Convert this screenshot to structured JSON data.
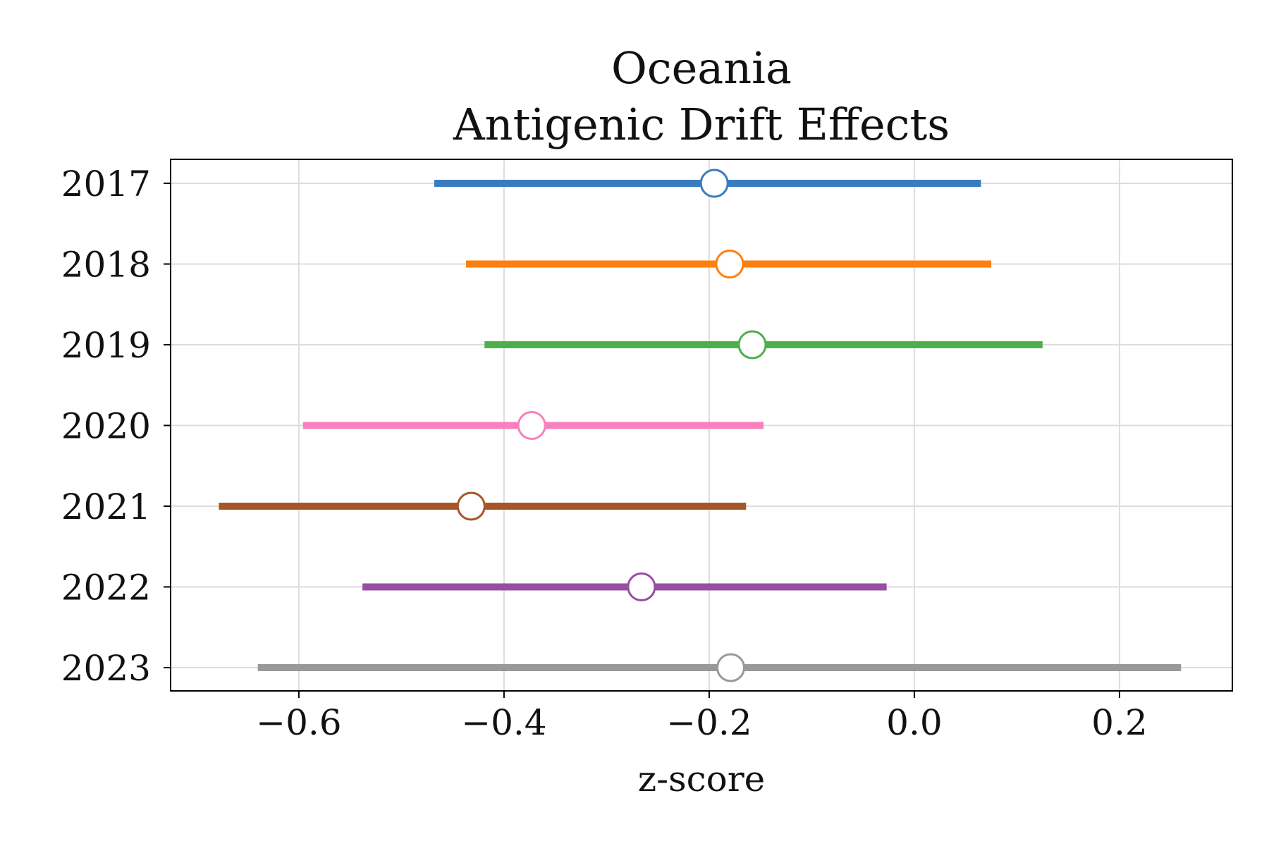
{
  "chart_data": {
    "type": "forest",
    "title_lines": [
      "Oceania",
      "Antigenic Drift Effects"
    ],
    "xlabel": "z-score",
    "ylabel": "",
    "xlim": [
      -0.725,
      0.31
    ],
    "xticks": [
      -0.6,
      -0.4,
      -0.2,
      0.0,
      0.2
    ],
    "xtick_labels": [
      "−0.6",
      "−0.4",
      "−0.2",
      "0.0",
      "0.2"
    ],
    "grid": true,
    "categories": [
      "2017",
      "2018",
      "2019",
      "2020",
      "2021",
      "2022",
      "2023"
    ],
    "points": [
      {
        "label": "2017",
        "estimate": -0.195,
        "lower": -0.468,
        "upper": 0.065,
        "color": "#3a7dbf"
      },
      {
        "label": "2018",
        "estimate": -0.18,
        "lower": -0.437,
        "upper": 0.075,
        "color": "#ff7f0e"
      },
      {
        "label": "2019",
        "estimate": -0.158,
        "lower": -0.419,
        "upper": 0.125,
        "color": "#4daf4a"
      },
      {
        "label": "2020",
        "estimate": -0.373,
        "lower": -0.596,
        "upper": -0.147,
        "color": "#f781bf"
      },
      {
        "label": "2021",
        "estimate": -0.432,
        "lower": -0.678,
        "upper": -0.164,
        "color": "#a65628"
      },
      {
        "label": "2022",
        "estimate": -0.266,
        "lower": -0.538,
        "upper": -0.027,
        "color": "#984ea3"
      },
      {
        "label": "2023",
        "estimate": -0.179,
        "lower": -0.64,
        "upper": 0.26,
        "color": "#999999"
      }
    ]
  }
}
